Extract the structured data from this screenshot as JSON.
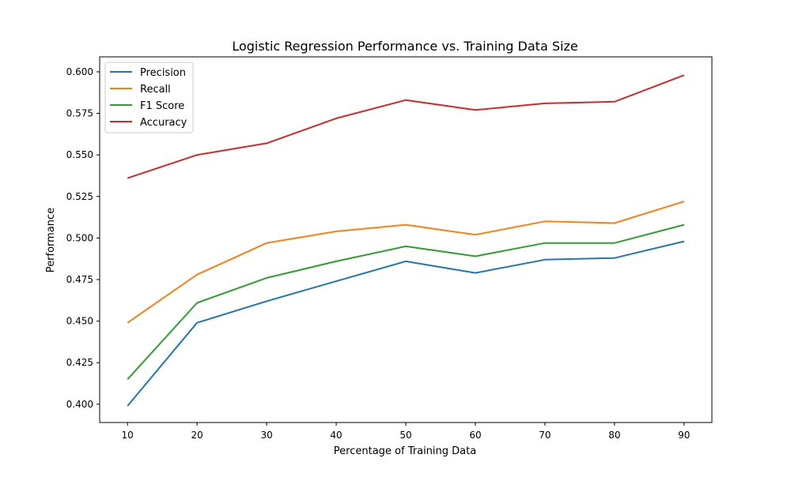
{
  "chart_data": {
    "type": "line",
    "title": "Logistic Regression Performance vs. Training Data Size",
    "xlabel": "Percentage of Training Data",
    "ylabel": "Performance",
    "x": [
      10,
      20,
      30,
      40,
      50,
      60,
      70,
      80,
      90
    ],
    "xticks": [
      10,
      20,
      30,
      40,
      50,
      60,
      70,
      80,
      90
    ],
    "yticks": [
      0.4,
      0.425,
      0.45,
      0.475,
      0.5,
      0.525,
      0.55,
      0.575,
      0.6
    ],
    "ytick_labels": [
      "0.400",
      "0.425",
      "0.450",
      "0.475",
      "0.500",
      "0.525",
      "0.550",
      "0.575",
      "0.600"
    ],
    "xlim": [
      6,
      94
    ],
    "ylim": [
      0.389,
      0.609
    ],
    "grid": false,
    "legend_position": "top-left",
    "series": [
      {
        "name": "Precision",
        "color": "#1f77b4",
        "values": [
          0.399,
          0.449,
          0.462,
          0.474,
          0.486,
          0.479,
          0.487,
          0.488,
          0.498
        ]
      },
      {
        "name": "Recall",
        "color": "#ff7f0e",
        "values": [
          0.449,
          0.478,
          0.497,
          0.504,
          0.508,
          0.502,
          0.51,
          0.509,
          0.522
        ]
      },
      {
        "name": "F1 Score",
        "color": "#2ca02c",
        "values": [
          0.415,
          0.461,
          0.476,
          0.486,
          0.495,
          0.489,
          0.497,
          0.497,
          0.508
        ]
      },
      {
        "name": "Accuracy",
        "color": "#d62728",
        "values": [
          0.536,
          0.55,
          0.557,
          0.572,
          0.583,
          0.577,
          0.581,
          0.582,
          0.598
        ]
      }
    ]
  }
}
